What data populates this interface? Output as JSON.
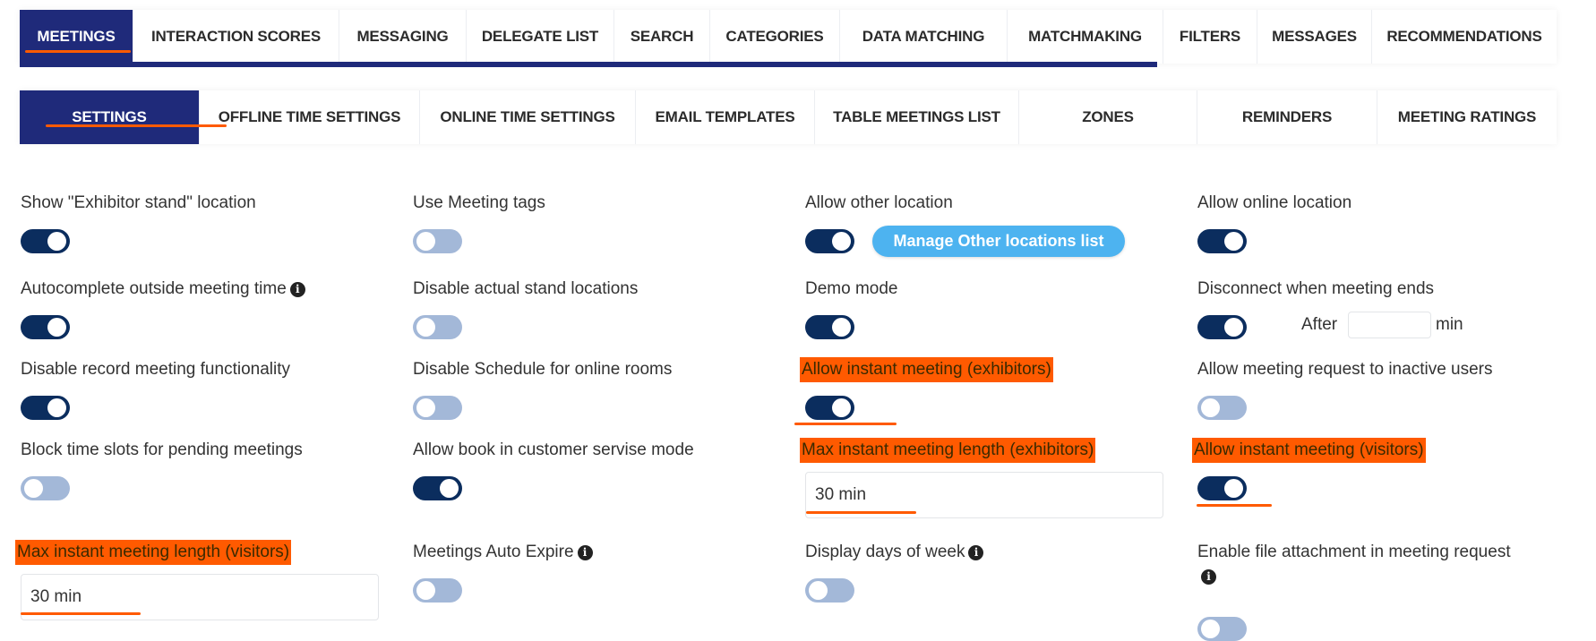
{
  "top_tabs": [
    {
      "label": "MEETINGS",
      "active": true
    },
    {
      "label": "INTERACTION SCORES"
    },
    {
      "label": "MESSAGING"
    },
    {
      "label": "DELEGATE LIST"
    },
    {
      "label": "SEARCH"
    },
    {
      "label": "CATEGORIES"
    },
    {
      "label": "DATA MATCHING"
    },
    {
      "label": "MATCHMAKING"
    },
    {
      "label": "FILTERS"
    },
    {
      "label": "MESSAGES"
    },
    {
      "label": "RECOMMENDATIONS"
    }
  ],
  "sub_tabs": [
    {
      "label": "SETTINGS",
      "active": true
    },
    {
      "label": "OFFLINE TIME SETTINGS"
    },
    {
      "label": "ONLINE TIME SETTINGS"
    },
    {
      "label": "EMAIL TEMPLATES"
    },
    {
      "label": "TABLE MEETINGS LIST"
    },
    {
      "label": "ZONES"
    },
    {
      "label": "REMINDERS"
    },
    {
      "label": "MEETING RATINGS"
    }
  ],
  "settings": {
    "show_exhibitor_stand": {
      "label": "Show \"Exhibitor stand\" location",
      "on": true
    },
    "use_meeting_tags": {
      "label": "Use Meeting tags",
      "on": false
    },
    "allow_other_location": {
      "label": "Allow other location",
      "on": true,
      "button": "Manage Other locations list"
    },
    "allow_online_location": {
      "label": "Allow online location",
      "on": true
    },
    "autocomplete_outside": {
      "label": "Autocomplete outside meeting time",
      "on": true
    },
    "disable_stand_locations": {
      "label": "Disable actual stand locations",
      "on": false
    },
    "demo_mode": {
      "label": "Demo mode",
      "on": true
    },
    "disconnect_when_ends": {
      "label": "Disconnect when meeting ends",
      "on": true,
      "after_label": "After",
      "after_value": "",
      "unit": "min"
    },
    "disable_record": {
      "label": "Disable record meeting functionality",
      "on": true
    },
    "disable_schedule_online": {
      "label": "Disable Schedule for online rooms",
      "on": false
    },
    "allow_instant_exhibitors": {
      "label": "Allow instant meeting (exhibitors)",
      "on": true
    },
    "allow_request_inactive": {
      "label": "Allow meeting request to inactive users",
      "on": false
    },
    "block_time_slots": {
      "label": "Block time slots for pending meetings",
      "on": false
    },
    "allow_book_customer_service": {
      "label": "Allow book in customer servise mode",
      "on": true
    },
    "max_instant_exhibitors": {
      "label": "Max instant meeting length (exhibitors)",
      "value": "30 min"
    },
    "allow_instant_visitors": {
      "label": "Allow instant meeting (visitors)",
      "on": true
    },
    "max_instant_visitors": {
      "label": "Max instant meeting length (visitors)",
      "value": "30 min"
    },
    "meetings_auto_expire": {
      "label": "Meetings Auto Expire",
      "on": false
    },
    "display_days_of_week": {
      "label": "Display days of week",
      "on": false
    },
    "enable_file_attachment": {
      "label": "Enable file attachment in meeting request",
      "on": false
    }
  },
  "colors": {
    "navy": "#1f2a7a",
    "toggle_on": "#0b2d5e",
    "toggle_off": "#a3b8d8",
    "highlight": "#ff5a00",
    "button": "#4db3f0"
  }
}
